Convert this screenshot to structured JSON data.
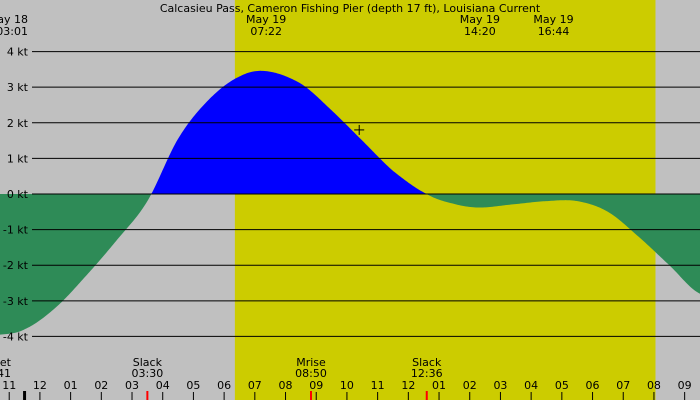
{
  "chart_data": {
    "type": "area",
    "title": "Calcasieu Pass, Cameron Fishing Pier (depth 17 ft), Louisiana Current",
    "x_unit": "hour",
    "x_range": [
      10.7,
      33.5
    ],
    "ylim": [
      -4.55,
      4.55
    ],
    "yticks": [
      {
        "value": 4,
        "label": "4 kt"
      },
      {
        "value": 3,
        "label": "3 kt"
      },
      {
        "value": 2,
        "label": "2 kt"
      },
      {
        "value": 1,
        "label": "1 kt"
      },
      {
        "value": 0,
        "label": "0 kt"
      },
      {
        "value": -1,
        "label": "-1 kt"
      },
      {
        "value": -2,
        "label": "-2 kt"
      },
      {
        "value": -3,
        "label": "-3 kt"
      },
      {
        "value": -4,
        "label": "-4 kt"
      }
    ],
    "xticks": [
      {
        "value": 11,
        "label": "11"
      },
      {
        "value": 12,
        "label": "12"
      },
      {
        "value": 13,
        "label": "01"
      },
      {
        "value": 14,
        "label": "02"
      },
      {
        "value": 15,
        "label": "03"
      },
      {
        "value": 16,
        "label": "04"
      },
      {
        "value": 17,
        "label": "05"
      },
      {
        "value": 18,
        "label": "06"
      },
      {
        "value": 19,
        "label": "07"
      },
      {
        "value": 20,
        "label": "08"
      },
      {
        "value": 21,
        "label": "09"
      },
      {
        "value": 22,
        "label": "10"
      },
      {
        "value": 23,
        "label": "11"
      },
      {
        "value": 24,
        "label": "12"
      },
      {
        "value": 25,
        "label": "01"
      },
      {
        "value": 26,
        "label": "02"
      },
      {
        "value": 27,
        "label": "03"
      },
      {
        "value": 28,
        "label": "04"
      },
      {
        "value": 29,
        "label": "05"
      },
      {
        "value": 30,
        "label": "06"
      },
      {
        "value": 31,
        "label": "07"
      },
      {
        "value": 32,
        "label": "08"
      },
      {
        "value": 33,
        "label": "09"
      }
    ],
    "daylight": [
      18.35,
      32.05
    ],
    "series": [
      {
        "color_flood": "#0000ff",
        "color_ebb": "#2e8b57",
        "points": [
          [
            10.7,
            -3.95
          ],
          [
            11.5,
            -3.8
          ],
          [
            12.5,
            -3.2
          ],
          [
            13.5,
            -2.3
          ],
          [
            14.5,
            -1.3
          ],
          [
            15.5,
            -0.2
          ],
          [
            16.5,
            1.55
          ],
          [
            17.5,
            2.65
          ],
          [
            18.5,
            3.3
          ],
          [
            19.37,
            3.45
          ],
          [
            20.5,
            3.1
          ],
          [
            21.5,
            2.35
          ],
          [
            22.5,
            1.5
          ],
          [
            23.5,
            0.65
          ],
          [
            24.6,
            0.0
          ],
          [
            25.5,
            -0.28
          ],
          [
            26.3,
            -0.38
          ],
          [
            27.3,
            -0.3
          ],
          [
            28.5,
            -0.2
          ],
          [
            29.5,
            -0.2
          ],
          [
            30.5,
            -0.5
          ],
          [
            31.5,
            -1.2
          ],
          [
            32.5,
            -2.0
          ],
          [
            33.5,
            -2.8
          ]
        ]
      }
    ],
    "top_labels": [
      {
        "x": 10.7,
        "lines": [
          "May 18",
          "03:01"
        ],
        "anchor": "end"
      },
      {
        "x": 19.37,
        "lines": [
          "May 19",
          "07:22"
        ],
        "anchor": "middle"
      },
      {
        "x": 26.33,
        "lines": [
          "May 19",
          "14:20"
        ],
        "anchor": "middle"
      },
      {
        "x": 28.73,
        "lines": [
          "May 19",
          "16:44"
        ],
        "anchor": "middle"
      }
    ],
    "bottom_labels": [
      {
        "x": 10.7,
        "lines": [
          "et",
          "41"
        ],
        "anchor": "end"
      },
      {
        "x": 15.5,
        "lines": [
          "Slack",
          "03:30"
        ],
        "anchor": "middle"
      },
      {
        "x": 20.83,
        "lines": [
          "Mrise",
          "08:50"
        ],
        "anchor": "middle"
      },
      {
        "x": 24.6,
        "lines": [
          "Slack",
          "12:36"
        ],
        "anchor": "middle"
      }
    ],
    "markers": [
      {
        "x": 11.5,
        "color": "#000000"
      },
      {
        "x": 15.5,
        "color": "#ff0000"
      },
      {
        "x": 20.83,
        "color": "#ff0000"
      },
      {
        "x": 24.6,
        "color": "#ff0000"
      }
    ],
    "crosshair": {
      "x": 22.4,
      "y": 1.8
    },
    "colors": {
      "background": "#c0c0c0",
      "daylight": "#cccc00",
      "flood": "#0000ff",
      "ebb": "#2e8b57",
      "grid": "#000000"
    }
  }
}
